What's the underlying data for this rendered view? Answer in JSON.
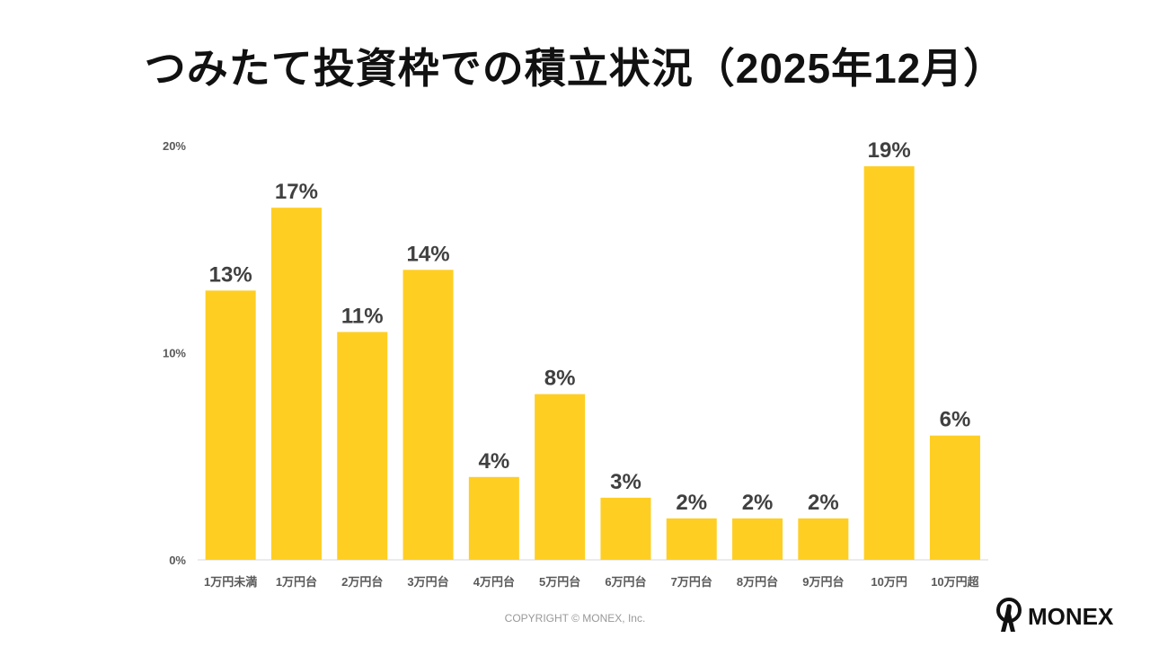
{
  "chart_data": {
    "type": "bar",
    "title": "つみたて投資枠での積立状況（2025年12月）",
    "categories": [
      "1万円未満",
      "1万円台",
      "2万円台",
      "3万円台",
      "4万円台",
      "5万円台",
      "6万円台",
      "7万円台",
      "8万円台",
      "9万円台",
      "10万円",
      "10万円超"
    ],
    "values": [
      13,
      17,
      11,
      14,
      4,
      8,
      3,
      2,
      2,
      2,
      19,
      6
    ],
    "data_labels": [
      "13%",
      "17%",
      "11%",
      "14%",
      "4%",
      "8%",
      "3%",
      "2%",
      "2%",
      "2%",
      "19%",
      "6%"
    ],
    "yticks": [
      "0%",
      "10%",
      "20%"
    ],
    "ytick_values": [
      0,
      10,
      20
    ],
    "ylim": [
      0,
      20
    ],
    "grid": false,
    "bar_color": "#FFCE22"
  },
  "footer": {
    "copyright": "COPYRIGHT © MONEX, Inc.",
    "logo": "MONEX"
  }
}
